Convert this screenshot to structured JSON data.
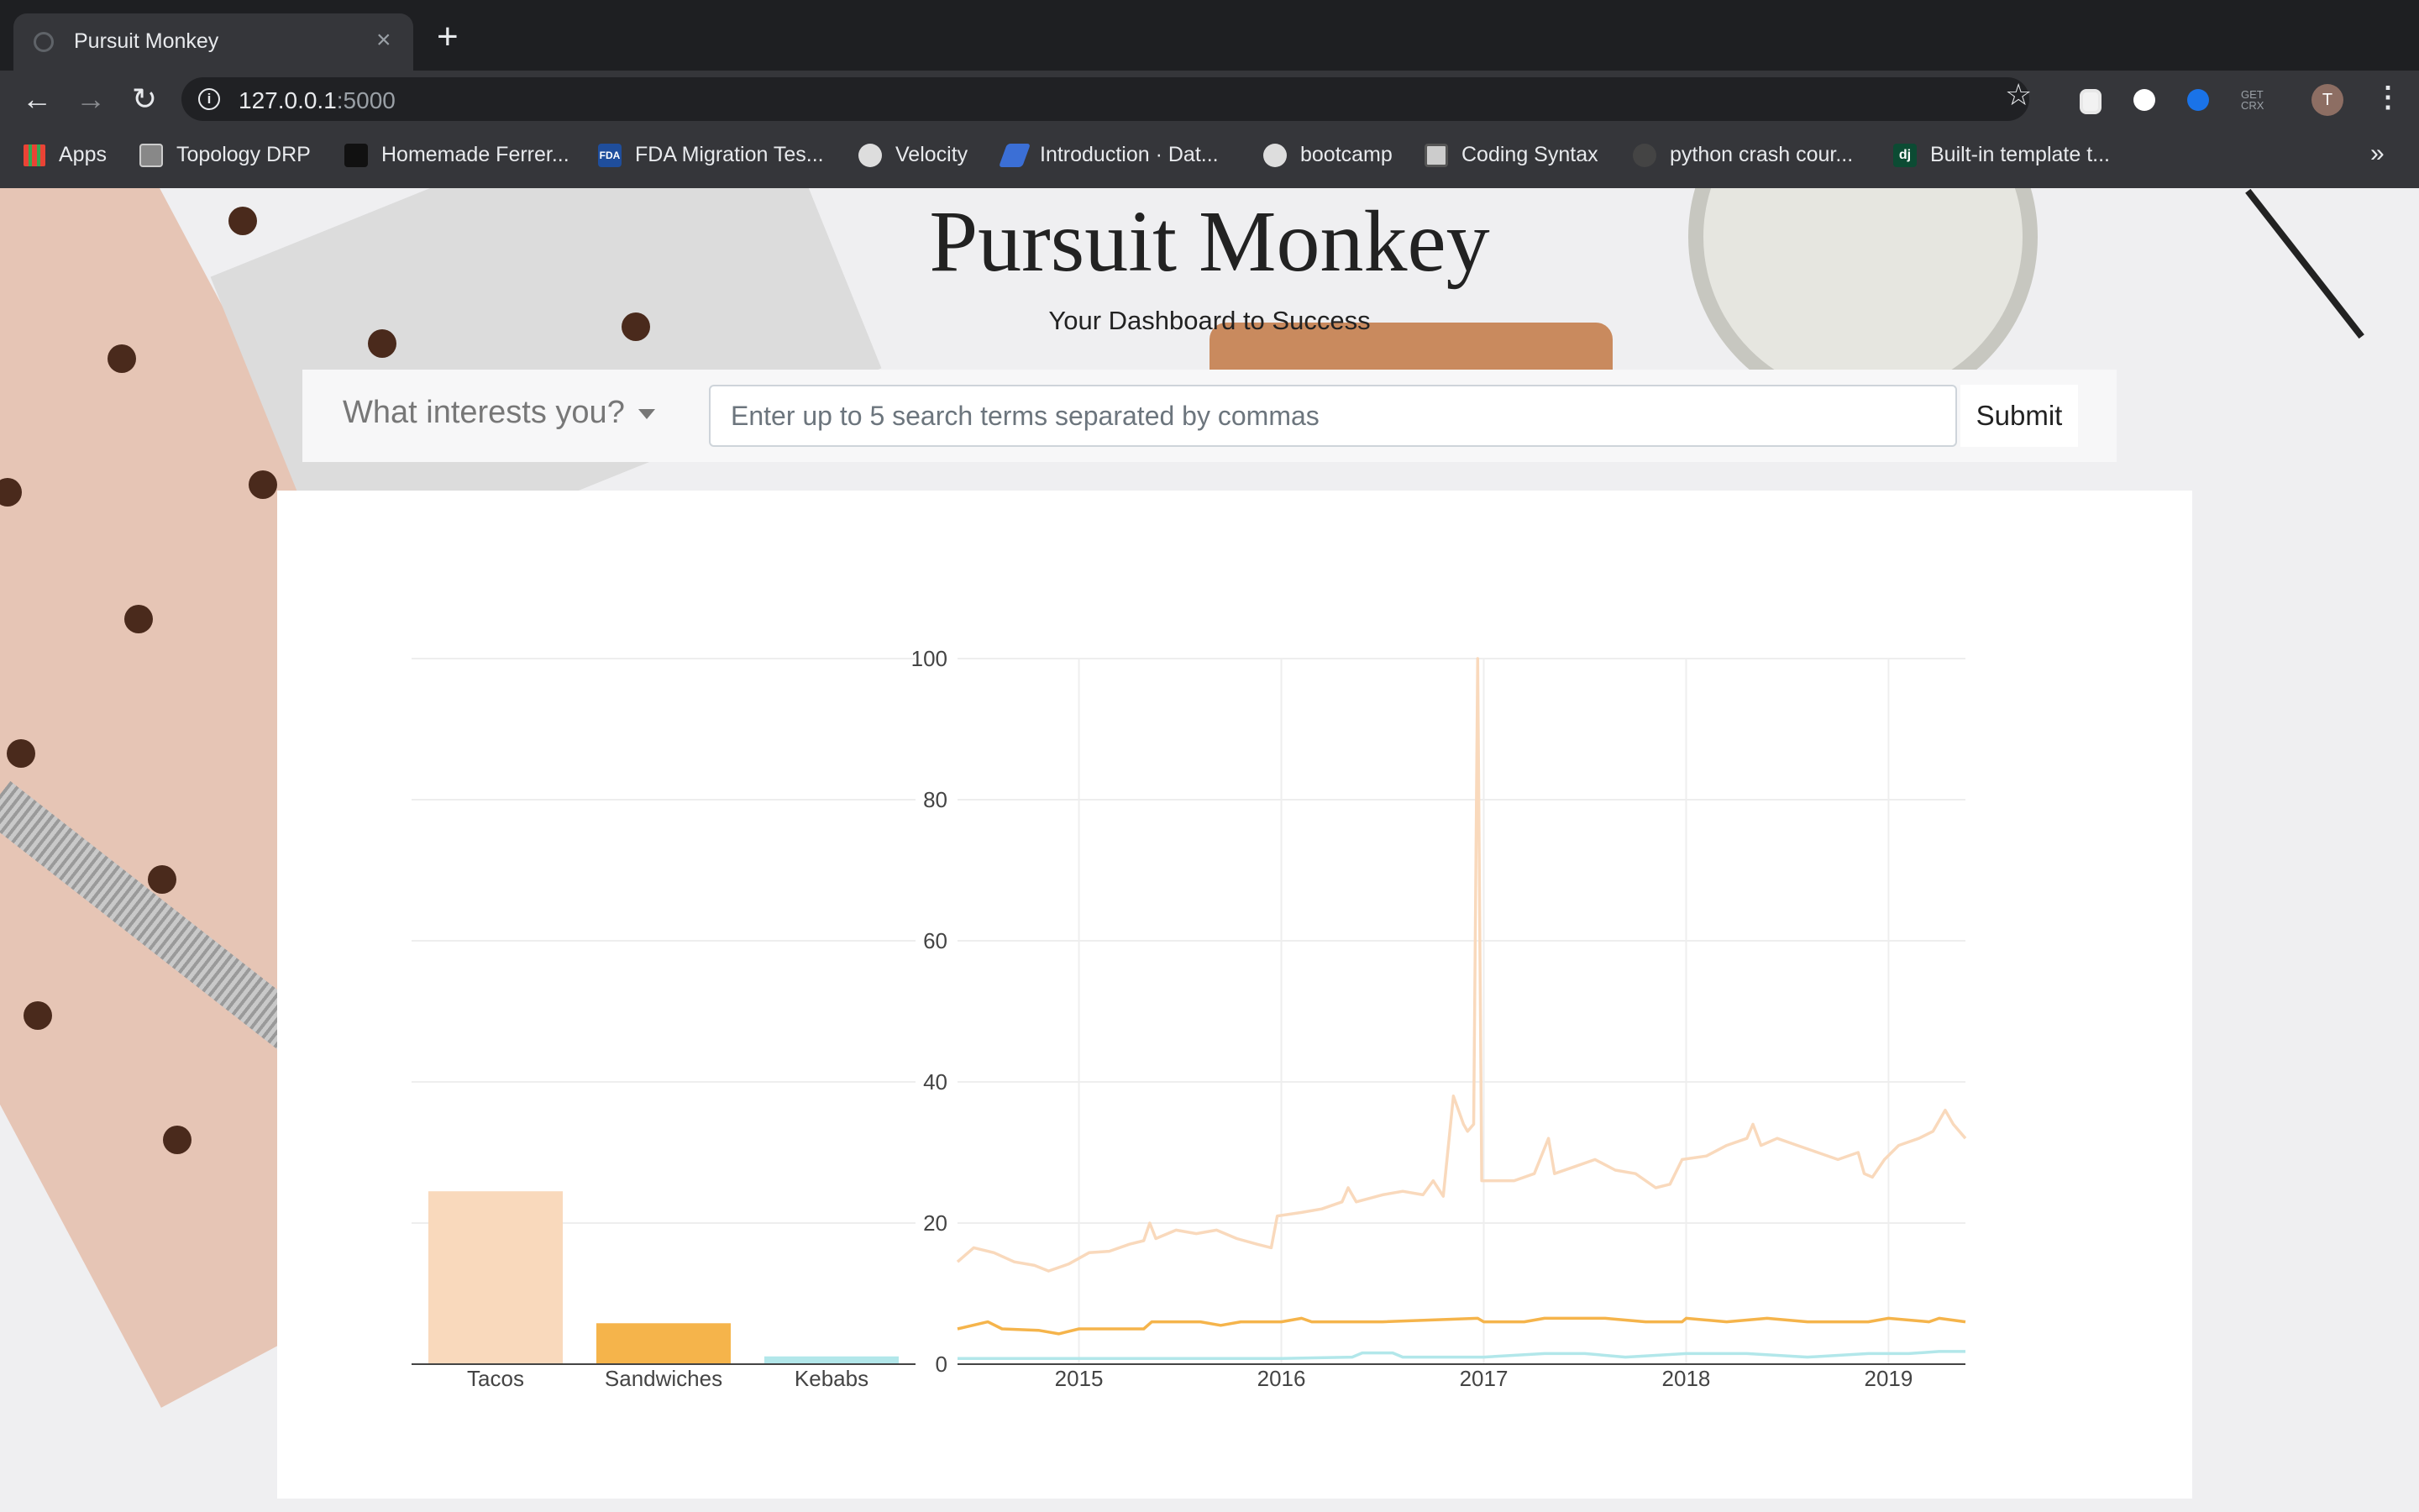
{
  "browser": {
    "tab_title": "Pursuit Monkey",
    "tab_close": "×",
    "new_tab": "+",
    "url_host": "127.0.0.1",
    "url_port": ":5000",
    "bookmarks": [
      {
        "label": "Apps",
        "icon": "apps-grid-icon",
        "color": "#4285f4"
      },
      {
        "label": "Topology DRP",
        "icon": "topology-icon",
        "color": "#888888"
      },
      {
        "label": "Homemade Ferrer...",
        "icon": "bookmark-icon",
        "color": "#222222"
      },
      {
        "label": "FDA Migration Tes...",
        "icon": "fda-icon",
        "color": "#1f4e9c"
      },
      {
        "label": "Velocity",
        "icon": "globe-icon",
        "color": "#dddddd"
      },
      {
        "label": "Introduction · Dat...",
        "icon": "book-icon",
        "color": "#3b6fd6"
      },
      {
        "label": "bootcamp",
        "icon": "globe-icon",
        "color": "#dddddd"
      },
      {
        "label": "Coding Syntax",
        "icon": "coding-icon",
        "color": "#cccccc"
      },
      {
        "label": "python crash cour...",
        "icon": "github-icon",
        "color": "#444444"
      },
      {
        "label": "Built-in template t...",
        "icon": "django-icon",
        "color": "#0c4b33"
      }
    ],
    "more_bookmarks": "»"
  },
  "page": {
    "title": "Pursuit Monkey",
    "subtitle": "Your Dashboard to Success",
    "search": {
      "dropdown_label": "What interests you?",
      "placeholder": "Enter up to 5 search terms separated by commas",
      "value": "",
      "submit_label": "Submit"
    }
  },
  "chart_data": [
    {
      "type": "bar",
      "categories": [
        "Tacos",
        "Sandwiches",
        "Kebabs"
      ],
      "values": [
        24.5,
        5.8,
        1.1
      ],
      "colors": [
        "#f9d9bc",
        "#f5b44b",
        "#b2e7ea"
      ],
      "ylim": [
        0,
        100
      ],
      "yticks": [
        20,
        40,
        60,
        80,
        100
      ],
      "grid": true
    },
    {
      "type": "line",
      "xlim": [
        2014.4,
        2019.38
      ],
      "ylim": [
        0,
        100
      ],
      "xticks": [
        2015,
        2016,
        2017,
        2018,
        2019
      ],
      "yticks": [
        0,
        20,
        40,
        60,
        80,
        100
      ],
      "grid": true,
      "series": [
        {
          "color": "#f9d9bc",
          "points": [
            [
              2014.4,
              14.5
            ],
            [
              2014.48,
              16.5
            ],
            [
              2014.58,
              15.8
            ],
            [
              2014.68,
              14.5
            ],
            [
              2014.78,
              14
            ],
            [
              2014.85,
              13.2
            ],
            [
              2014.95,
              14.2
            ],
            [
              2015.05,
              15.8
            ],
            [
              2015.15,
              16
            ],
            [
              2015.25,
              17
            ],
            [
              2015.32,
              17.5
            ],
            [
              2015.35,
              20
            ],
            [
              2015.38,
              17.8
            ],
            [
              2015.48,
              19
            ],
            [
              2015.58,
              18.5
            ],
            [
              2015.68,
              19
            ],
            [
              2015.78,
              17.8
            ],
            [
              2015.88,
              17
            ],
            [
              2015.95,
              16.5
            ],
            [
              2015.98,
              21
            ],
            [
              2016.1,
              21.5
            ],
            [
              2016.2,
              22
            ],
            [
              2016.3,
              23
            ],
            [
              2016.33,
              25
            ],
            [
              2016.37,
              23
            ],
            [
              2016.5,
              24
            ],
            [
              2016.6,
              24.5
            ],
            [
              2016.7,
              24
            ],
            [
              2016.75,
              26
            ],
            [
              2016.8,
              23.8
            ],
            [
              2016.85,
              38
            ],
            [
              2016.9,
              34
            ],
            [
              2016.92,
              33
            ],
            [
              2016.95,
              34
            ],
            [
              2016.97,
              100
            ],
            [
              2016.99,
              26
            ],
            [
              2017.05,
              26
            ],
            [
              2017.15,
              26
            ],
            [
              2017.25,
              27
            ],
            [
              2017.32,
              32
            ],
            [
              2017.35,
              27
            ],
            [
              2017.45,
              28
            ],
            [
              2017.55,
              29
            ],
            [
              2017.65,
              27.5
            ],
            [
              2017.75,
              27
            ],
            [
              2017.85,
              25
            ],
            [
              2017.92,
              25.5
            ],
            [
              2017.98,
              29
            ],
            [
              2018.1,
              29.5
            ],
            [
              2018.2,
              31
            ],
            [
              2018.3,
              32
            ],
            [
              2018.33,
              34
            ],
            [
              2018.37,
              31
            ],
            [
              2018.45,
              32
            ],
            [
              2018.55,
              31
            ],
            [
              2018.65,
              30
            ],
            [
              2018.75,
              29
            ],
            [
              2018.85,
              30
            ],
            [
              2018.88,
              27
            ],
            [
              2018.92,
              26.5
            ],
            [
              2018.98,
              29
            ],
            [
              2019.05,
              31
            ],
            [
              2019.15,
              32
            ],
            [
              2019.22,
              33
            ],
            [
              2019.28,
              36
            ],
            [
              2019.32,
              34
            ],
            [
              2019.38,
              32
            ]
          ]
        },
        {
          "color": "#f5b44b",
          "points": [
            [
              2014.4,
              5
            ],
            [
              2014.55,
              6
            ],
            [
              2014.62,
              5
            ],
            [
              2014.8,
              4.8
            ],
            [
              2014.9,
              4.3
            ],
            [
              2015.0,
              5
            ],
            [
              2015.2,
              5
            ],
            [
              2015.32,
              5
            ],
            [
              2015.36,
              6
            ],
            [
              2015.6,
              6
            ],
            [
              2015.7,
              5.5
            ],
            [
              2015.8,
              6
            ],
            [
              2016.0,
              6
            ],
            [
              2016.1,
              6.5
            ],
            [
              2016.15,
              6
            ],
            [
              2016.5,
              6
            ],
            [
              2016.97,
              6.5
            ],
            [
              2017.0,
              6
            ],
            [
              2017.2,
              6
            ],
            [
              2017.3,
              6.5
            ],
            [
              2017.6,
              6.5
            ],
            [
              2017.8,
              6
            ],
            [
              2017.98,
              6
            ],
            [
              2018.0,
              6.5
            ],
            [
              2018.2,
              6
            ],
            [
              2018.4,
              6.5
            ],
            [
              2018.6,
              6
            ],
            [
              2018.9,
              6
            ],
            [
              2019.0,
              6.5
            ],
            [
              2019.2,
              6
            ],
            [
              2019.25,
              6.5
            ],
            [
              2019.38,
              6
            ]
          ]
        },
        {
          "color": "#b2e7ea",
          "points": [
            [
              2014.4,
              0.8
            ],
            [
              2015.0,
              0.8
            ],
            [
              2015.5,
              0.8
            ],
            [
              2016.0,
              0.8
            ],
            [
              2016.35,
              1
            ],
            [
              2016.4,
              1.6
            ],
            [
              2016.55,
              1.6
            ],
            [
              2016.6,
              1
            ],
            [
              2016.8,
              1
            ],
            [
              2017.0,
              1
            ],
            [
              2017.3,
              1.5
            ],
            [
              2017.5,
              1.5
            ],
            [
              2017.7,
              1
            ],
            [
              2018.0,
              1.5
            ],
            [
              2018.3,
              1.5
            ],
            [
              2018.6,
              1
            ],
            [
              2018.9,
              1.5
            ],
            [
              2019.1,
              1.5
            ],
            [
              2019.25,
              1.8
            ],
            [
              2019.38,
              1.8
            ]
          ]
        }
      ]
    }
  ]
}
